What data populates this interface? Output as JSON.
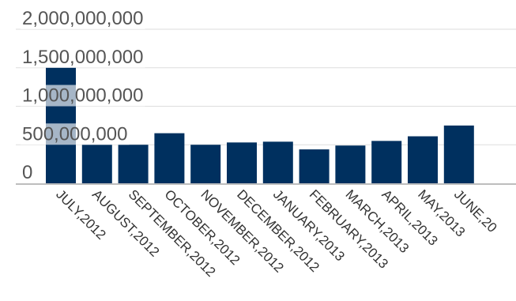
{
  "chart_data": {
    "type": "bar",
    "title": "",
    "xlabel": "",
    "ylabel": "",
    "ylim": [
      0,
      2000000000
    ],
    "y_ticks": [
      0,
      500000000,
      1000000000,
      1500000000,
      2000000000
    ],
    "y_tick_labels": [
      "0",
      "500,000,000",
      "1,000,000,000",
      "1,500,000,000",
      "2,000,000,000"
    ],
    "grid": true,
    "legend": "none",
    "bar_color": "#00305F",
    "categories": [
      "JULY,2012",
      "AUGUST,2012",
      "SEPTEMBER,2012",
      "OCTOBER,2012",
      "NOVEMBER,2012",
      "DECEMBER,2012",
      "JANUARY,2013",
      "FEBRUARY,2013",
      "MARCH,2013",
      "APRIL,2013",
      "MAY,2013",
      "JUNE,20"
    ],
    "values": [
      1500000000,
      500000000,
      500000000,
      650000000,
      500000000,
      530000000,
      540000000,
      440000000,
      490000000,
      550000000,
      610000000,
      750000000
    ]
  }
}
